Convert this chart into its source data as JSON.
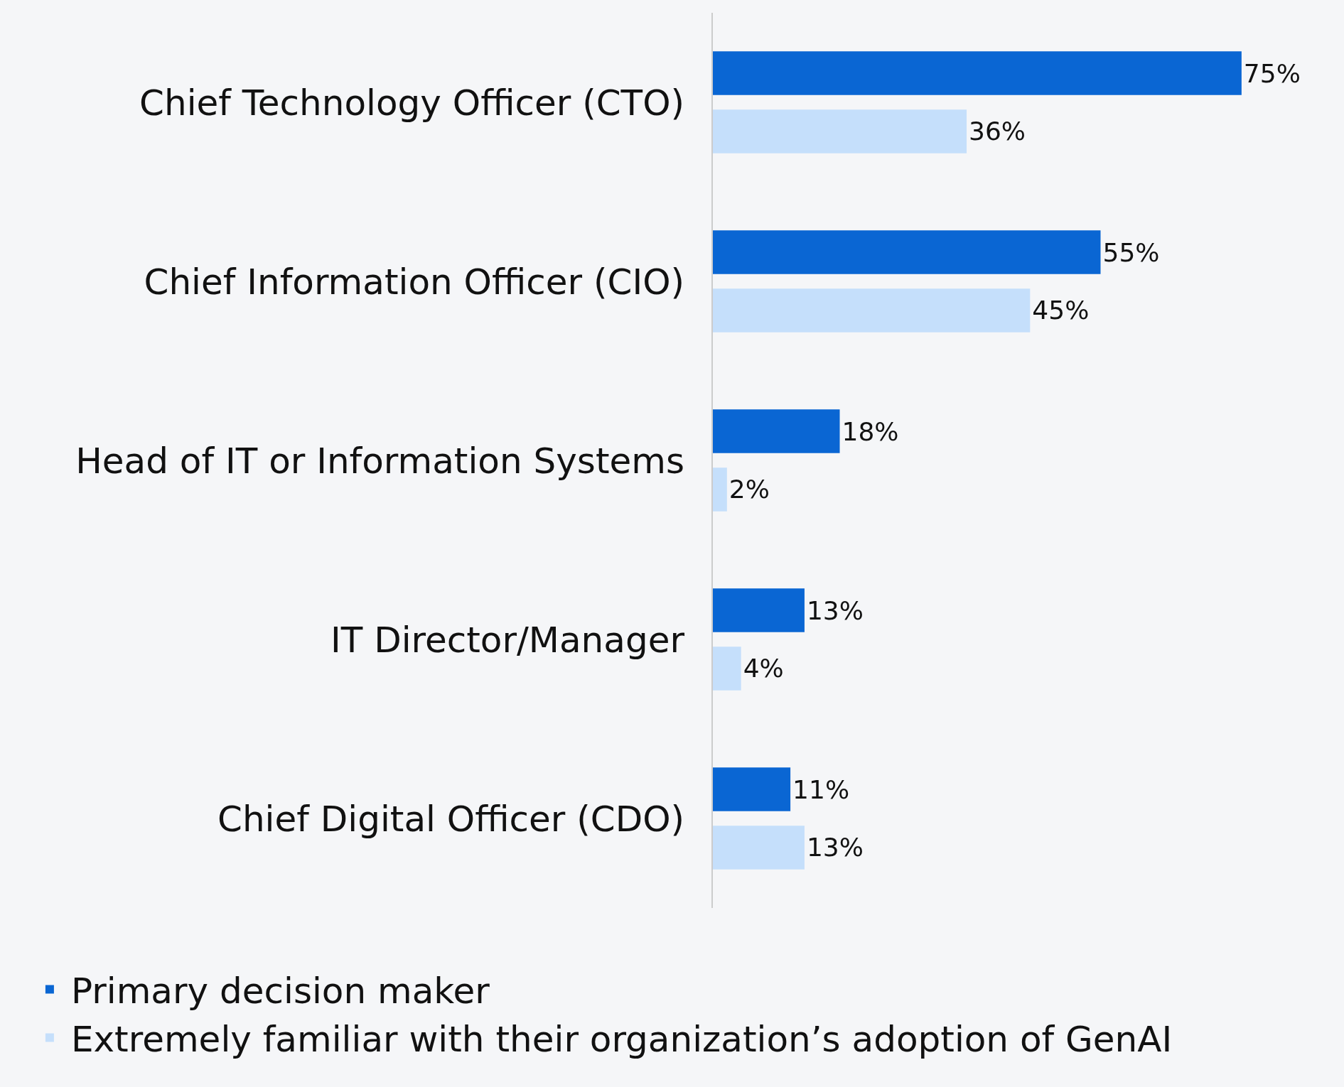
{
  "chart_data": {
    "type": "bar",
    "orientation": "horizontal",
    "categories": [
      "Chief Technology Officer (CTO)",
      "Chief Information Officer (CIO)",
      "Head of IT or Information Systems",
      "IT Director/Manager",
      "Chief Digital Officer (CDO)"
    ],
    "series": [
      {
        "name": "Primary decision maker",
        "color": "#0a66d3",
        "values": [
          75,
          55,
          18,
          13,
          11
        ],
        "value_labels": [
          "75%",
          "55%",
          "18%",
          "13%",
          "11%"
        ]
      },
      {
        "name": "Extremely familiar with their organization’s adoption of GenAI",
        "color": "#c5dffb",
        "values": [
          36,
          45,
          2,
          4,
          13
        ],
        "value_labels": [
          "36%",
          "45%",
          "2%",
          "4%",
          "13%"
        ]
      }
    ],
    "tick_labels": "y",
    "grid": false,
    "legend": "bottom"
  }
}
